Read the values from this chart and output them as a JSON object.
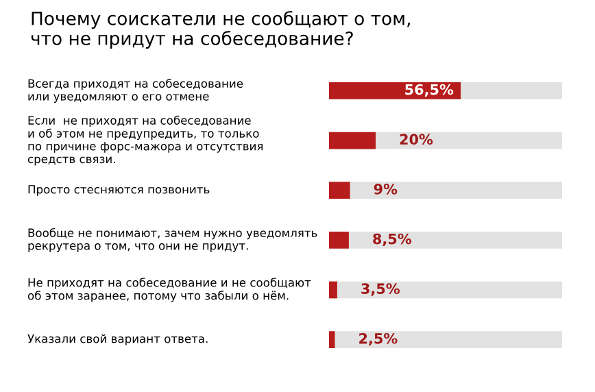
{
  "chart_data": {
    "type": "bar",
    "orientation": "horizontal",
    "title": "Почему соискатели не сообщают о том,\nчто не придут на собеседование?",
    "categories": [
      "Всегда приходят на собеседование\nили уведомляют о его отмене",
      "Если  не приходят на собеседование\nи об этом не предупредить, то только\nпо причине форс-мажора и отсутствия\nсредств связи.",
      "Просто стесняются позвонить",
      "Вообще не понимают, зачем нужно уведомлять\nрекрутера о том, что они не придут.",
      "Не приходят на собеседование и не сообщают\nоб этом заранее, потому что забыли о нём.",
      "Указали свой вариант ответа."
    ],
    "values": [
      56.5,
      20,
      9,
      8.5,
      3.5,
      2.5
    ],
    "value_labels": [
      "56,5%",
      "20%",
      "9%",
      "8,5%",
      "3,5%",
      "2,5%"
    ],
    "color": "#b71c1c",
    "xlim": [
      0,
      100
    ]
  }
}
